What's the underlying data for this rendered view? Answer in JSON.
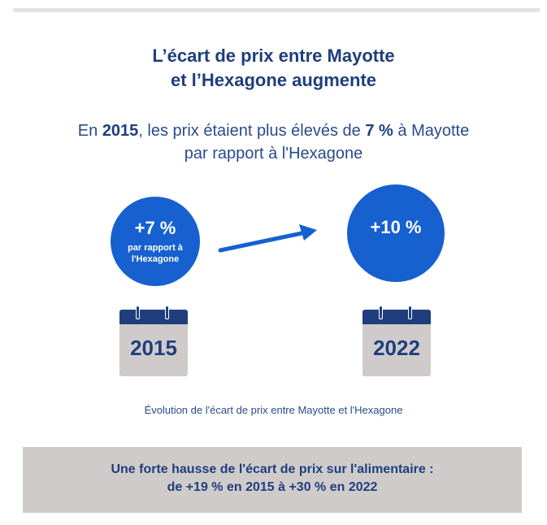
{
  "title": {
    "line1": "L’écart de prix entre Mayotte",
    "line2": "et l’Hexagone augmente"
  },
  "subtitle": {
    "prefix": "En ",
    "year": "2015",
    "middle": ", les prix étaient plus élevés de ",
    "value": "7 %",
    "suffix": " à Mayotte",
    "line2": "par rapport à l'Hexagone"
  },
  "circle_2015": {
    "value": "+7 %",
    "note_line1": "par rapport à",
    "note_line2": "l'Hexagone"
  },
  "circle_2022": {
    "value": "+10 %"
  },
  "calendar_2015": {
    "year": "2015"
  },
  "calendar_2022": {
    "year": "2022"
  },
  "caption": "Évolution de l'écart de prix entre Mayotte et l'Hexagone",
  "banner": {
    "line1": "Une forte hausse de l'écart de prix sur l'alimentaire :",
    "line2": "de +19 % en 2015 à +30 % en 2022"
  },
  "colors": {
    "navy": "#1f3e7d",
    "circle_blue": "#1660d0",
    "calendar_gray": "#cfcbca",
    "banner_gray": "#cfcbca"
  }
}
